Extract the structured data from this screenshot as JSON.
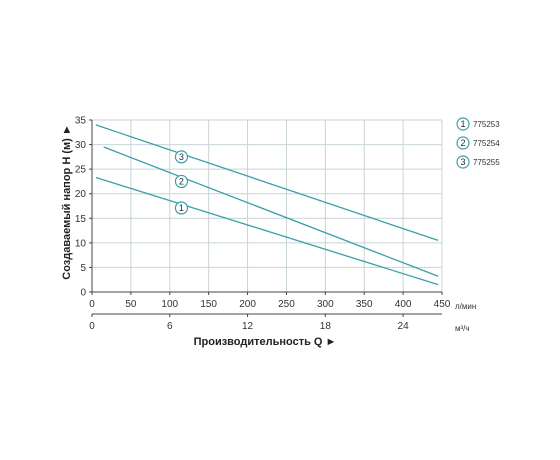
{
  "chart_data": {
    "type": "line",
    "title": "",
    "ylabel": "Создаваемый напор H (м) ►",
    "xlabel": "Производительность Q ►",
    "x_unit": "л/мин",
    "x2_unit": "м³/ч",
    "xlim": [
      0,
      450
    ],
    "ylim": [
      0,
      35
    ],
    "x_ticks": [
      0,
      50,
      100,
      150,
      200,
      250,
      300,
      350,
      400,
      450
    ],
    "y_ticks": [
      0,
      5,
      10,
      15,
      20,
      25,
      30,
      35
    ],
    "x2_ticks": [
      0,
      6,
      12,
      18,
      24
    ],
    "grid": true,
    "legend_position": "right",
    "colors": {
      "line": "#3a9fab",
      "grid": "#c8d4d8",
      "axis": "#444444",
      "marker": "#3a9fab"
    },
    "series": [
      {
        "name": "775253",
        "marker": "1",
        "x": [
          5,
          445
        ],
        "y": [
          23.3,
          1.5
        ],
        "marker_x": 115,
        "marker_y": 17.1
      },
      {
        "name": "775254",
        "marker": "2",
        "x": [
          15,
          445
        ],
        "y": [
          29.5,
          3.2
        ],
        "marker_x": 115,
        "marker_y": 22.5
      },
      {
        "name": "775255",
        "marker": "3",
        "x": [
          5,
          445
        ],
        "y": [
          34.0,
          10.5
        ],
        "marker_x": 115,
        "marker_y": 27.5
      }
    ]
  }
}
